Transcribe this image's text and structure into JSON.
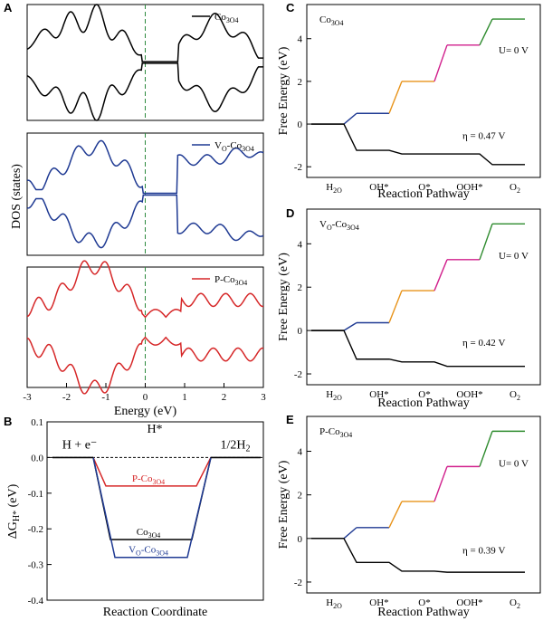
{
  "figure": {
    "colors": {
      "black": "#000000",
      "blue": "#1f3a93",
      "red": "#d62728",
      "orange": "#e8931a",
      "magenta": "#d11f8c",
      "green": "#2e8b2e",
      "dashed_green": "#2d8a3e"
    }
  },
  "chart_data": [
    {
      "panel": "A",
      "type": "line",
      "subtitle_panels": [
        "Co3O4",
        "VO-Co3O4",
        "P-Co3O4"
      ],
      "legend_labels": [
        "Co_3O_4",
        "V_O-Co_3O_4",
        "P-Co_3O_4"
      ],
      "xlabel": "Energy (eV)",
      "ylabel": "DOS (states)",
      "xlim": [
        -3,
        3
      ],
      "xticks": [
        "-3",
        "-2",
        "-1",
        "0",
        "1",
        "2",
        "3"
      ],
      "fermi_level": 0
    },
    {
      "panel": "B",
      "type": "line",
      "ylabel": "ΔG_H* (eV)",
      "xlabel": "Reaction Coordinate",
      "ylim": [
        -0.4,
        0.1
      ],
      "yticks": [
        "0.1",
        "0.0",
        "-0.1",
        "-0.2",
        "-0.3",
        "-0.4"
      ],
      "annotations": [
        "H + e⁻",
        "H*",
        "1/2H_2"
      ],
      "series": [
        {
          "name": "P-Co_3O_4",
          "value": -0.08,
          "color": "#d62728"
        },
        {
          "name": "Co_3O_4",
          "value": -0.23,
          "color": "#000000"
        },
        {
          "name": "V_O-Co_3O_4",
          "value": -0.28,
          "color": "#1f3a93"
        }
      ]
    },
    {
      "panel": "C",
      "type": "line",
      "title": "Co_3O_4",
      "xlabel": "Reaction Pathway",
      "ylabel": "Free Energy (eV)",
      "categories": [
        "H_2O",
        "OH*",
        "O*",
        "OOH*",
        "O_2"
      ],
      "ylim": [
        -2.5,
        5.6
      ],
      "yticks": [
        "-2",
        "0",
        "2",
        "4"
      ],
      "u0": [
        0,
        0.5,
        2.0,
        3.7,
        4.92
      ],
      "u_eq": [
        0,
        -1.23,
        -1.4,
        -1.4,
        -1.9
      ],
      "u0_label": "U= 0 V",
      "eta_label": "η = 0.47 V"
    },
    {
      "panel": "D",
      "type": "line",
      "title": "V_O-Co_3O_4",
      "xlabel": "Reaction Pathway",
      "ylabel": "Free Energy (eV)",
      "categories": [
        "H_2O",
        "OH*",
        "O*",
        "OOH*",
        "O_2"
      ],
      "ylim": [
        -2.5,
        5.6
      ],
      "yticks": [
        "-2",
        "0",
        "2",
        "4"
      ],
      "u0": [
        0,
        0.36,
        1.84,
        3.27,
        4.92
      ],
      "u_eq": [
        0,
        -1.32,
        -1.45,
        -1.65,
        -1.65
      ],
      "u0_label": "U= 0 V",
      "eta_label": "η = 0.42 V"
    },
    {
      "panel": "E",
      "type": "line",
      "title": "P-Co_3O_4",
      "xlabel": "Reaction Pathway",
      "ylabel": "Free Energy (eV)",
      "categories": [
        "H_2O",
        "OH*",
        "O*",
        "OOH*",
        "O_2"
      ],
      "ylim": [
        -2.5,
        5.6
      ],
      "yticks": [
        "-2",
        "0",
        "2",
        "4"
      ],
      "u0": [
        0,
        0.5,
        1.7,
        3.3,
        4.92
      ],
      "u_eq": [
        0,
        -1.1,
        -1.5,
        -1.55,
        -1.55
      ],
      "u0_label": "U= 0 V",
      "eta_label": "η = 0.39 V"
    }
  ],
  "panel_letters": [
    "A",
    "B",
    "C",
    "D",
    "E"
  ]
}
